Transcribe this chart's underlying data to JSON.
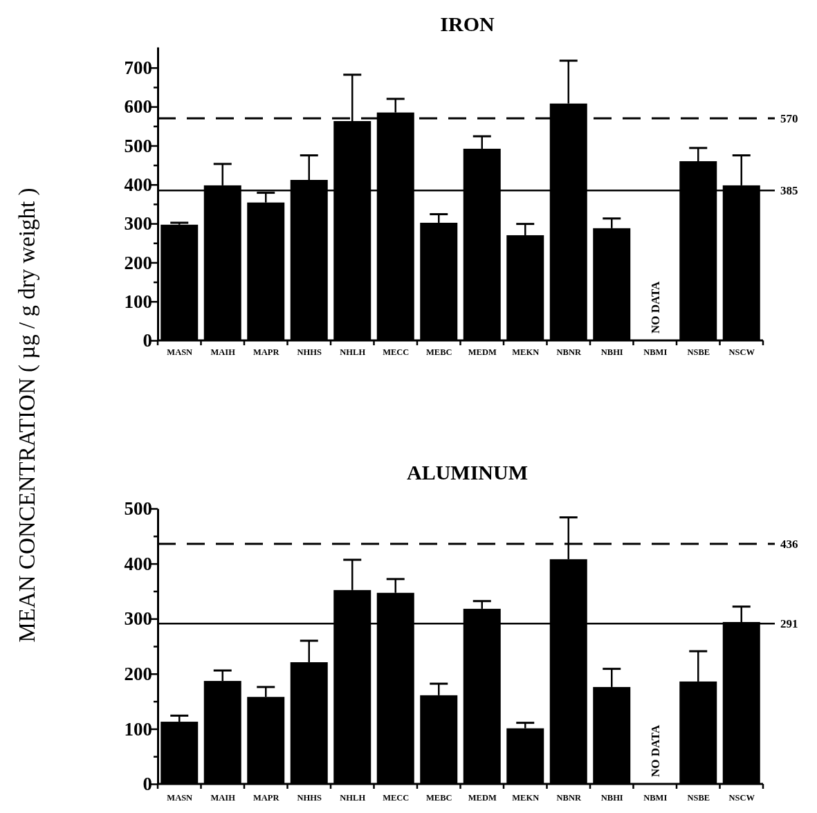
{
  "chart_data": [
    {
      "type": "bar",
      "title": "IRON",
      "ylabel": "MEAN CONCENTRATION ( µg / g dry weight )",
      "categories": [
        "MASN",
        "MAIH",
        "MAPR",
        "NHHS",
        "NHLH",
        "MECC",
        "MEBC",
        "MEDM",
        "MEKN",
        "NBNR",
        "NBHI",
        "NBMI",
        "NSBE",
        "NSCW"
      ],
      "series": [
        {
          "color": "#000000",
          "values": [
            297,
            398,
            354,
            412,
            563,
            585,
            302,
            492,
            270,
            608,
            288,
            null,
            460,
            398
          ],
          "errors": [
            [
              297,
              302
            ],
            [
              398,
              453
            ],
            [
              354,
              379
            ],
            [
              412,
              475
            ],
            [
              563,
              682
            ],
            [
              585,
              620
            ],
            [
              302,
              324
            ],
            [
              492,
              524
            ],
            [
              270,
              299
            ],
            [
              608,
              718
            ],
            [
              288,
              313
            ],
            null,
            [
              460,
              494
            ],
            [
              398,
              475
            ]
          ]
        }
      ],
      "ylim": [
        0,
        753
      ],
      "yticks": [
        0,
        100,
        {
          "value": 150,
          "label": null
        },
        200,
        {
          "value": 250,
          "label": null
        },
        300,
        {
          "value": 350,
          "label": null
        },
        400,
        {
          "value": 450,
          "label": null
        },
        500,
        {
          "value": 550,
          "label": null
        },
        600,
        {
          "value": 650,
          "label": null
        },
        700
      ],
      "ref_lines": [
        {
          "axis": "y",
          "value": 570,
          "label": "570",
          "line_style": "dashed"
        },
        {
          "axis": "y",
          "value": 385,
          "label": "385",
          "line_style": "solid"
        }
      ],
      "annotations": [
        "NO DATA"
      ],
      "grid": false
    },
    {
      "type": "bar",
      "title": "ALUMINUM",
      "categories": [
        "MASN",
        "MAIH",
        "MAPR",
        "NHHS",
        "NHLH",
        "MECC",
        "MEBC",
        "MEDM",
        "MEKN",
        "NBNR",
        "NBHI",
        "NBMI",
        "NSBE",
        "NSCW"
      ],
      "series": [
        {
          "color": "#000000",
          "values": [
            113,
            187,
            158,
            221,
            352,
            347,
            161,
            318,
            101,
            408,
            176,
            null,
            186,
            294
          ],
          "errors": [
            [
              113,
              124
            ],
            [
              187,
              206
            ],
            [
              158,
              176
            ],
            [
              221,
              260
            ],
            [
              352,
              407
            ],
            [
              347,
              372
            ],
            [
              161,
              182
            ],
            [
              318,
              332
            ],
            [
              101,
              111
            ],
            [
              408,
              484
            ],
            [
              176,
              209
            ],
            null,
            [
              186,
              241
            ],
            [
              294,
              322
            ]
          ]
        }
      ],
      "ylim": [
        0,
        500
      ],
      "yticks": [
        0,
        {
          "value": 50,
          "label": null
        },
        100,
        {
          "value": 150,
          "label": null
        },
        200,
        {
          "value": 250,
          "label": null
        },
        300,
        {
          "value": 350,
          "label": null
        },
        400,
        {
          "value": 450,
          "label": null
        },
        500
      ],
      "ref_lines": [
        {
          "axis": "y",
          "value": 436,
          "label": "436",
          "line_style": "dashed"
        },
        {
          "axis": "y",
          "value": 291,
          "label": "291",
          "line_style": "solid"
        }
      ],
      "annotations": [
        "NO DATA"
      ],
      "grid": false
    }
  ]
}
